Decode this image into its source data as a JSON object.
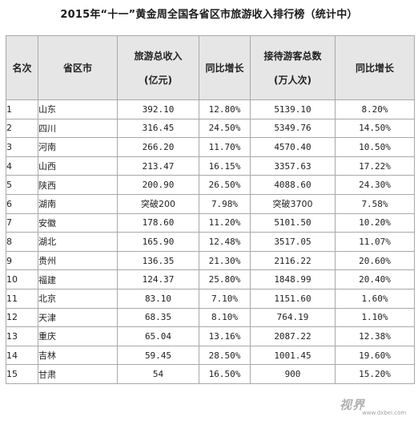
{
  "title": "2015年“十一”黄金周全国各省区市旅游收入排行榜（统计中）",
  "headers": {
    "rank": "名次",
    "province": "省区市",
    "income_l1": "旅游总收入",
    "income_l2": "(亿元)",
    "income_growth": "同比增长",
    "visitors_l1": "接待游客总数",
    "visitors_l2": "(万人次)",
    "visitors_growth": "同比增长"
  },
  "rows": [
    {
      "rank": "1",
      "province": "山东",
      "income": "392.10",
      "income_growth": "12.80%",
      "visitors": "5139.10",
      "visitors_growth": "8.20%"
    },
    {
      "rank": "2",
      "province": "四川",
      "income": "316.45",
      "income_growth": "24.50%",
      "visitors": "5349.76",
      "visitors_growth": "14.50%"
    },
    {
      "rank": "3",
      "province": "河南",
      "income": "266.20",
      "income_growth": "11.70%",
      "visitors": "4570.40",
      "visitors_growth": "10.50%"
    },
    {
      "rank": "4",
      "province": "山西",
      "income": "213.47",
      "income_growth": "16.15%",
      "visitors": "3357.63",
      "visitors_growth": "17.22%"
    },
    {
      "rank": "5",
      "province": "陕西",
      "income": "200.90",
      "income_growth": "26.50%",
      "visitors": "4088.60",
      "visitors_growth": "24.30%"
    },
    {
      "rank": "6",
      "province": "湖南",
      "income": "突破200",
      "income_growth": "7.98%",
      "visitors": "突破3700",
      "visitors_growth": "7.58%"
    },
    {
      "rank": "7",
      "province": "安徽",
      "income": "178.60",
      "income_growth": "11.20%",
      "visitors": "5101.50",
      "visitors_growth": "10.20%"
    },
    {
      "rank": "8",
      "province": "湖北",
      "income": "165.90",
      "income_growth": "12.48%",
      "visitors": "3517.05",
      "visitors_growth": "11.07%"
    },
    {
      "rank": "9",
      "province": "贵州",
      "income": "136.35",
      "income_growth": "21.30%",
      "visitors": "2116.22",
      "visitors_growth": "20.60%"
    },
    {
      "rank": "10",
      "province": "福建",
      "income": "124.37",
      "income_growth": "25.80%",
      "visitors": "1848.99",
      "visitors_growth": "20.40%"
    },
    {
      "rank": "11",
      "province": "北京",
      "income": "83.10",
      "income_growth": "7.10%",
      "visitors": "1151.60",
      "visitors_growth": "1.60%"
    },
    {
      "rank": "12",
      "province": "天津",
      "income": "68.35",
      "income_growth": "8.10%",
      "visitors": "764.19",
      "visitors_growth": "1.10%"
    },
    {
      "rank": "13",
      "province": "重庆",
      "income": "65.04",
      "income_growth": "13.16%",
      "visitors": "2087.22",
      "visitors_growth": "12.38%"
    },
    {
      "rank": "14",
      "province": "吉林",
      "income": "59.45",
      "income_growth": "28.50%",
      "visitors": "1001.45",
      "visitors_growth": "19.60%"
    },
    {
      "rank": "15",
      "province": "甘肃",
      "income": "54",
      "income_growth": "16.50%",
      "visitors": "900",
      "visitors_growth": "15.20%"
    }
  ],
  "watermark": {
    "mark": "视界",
    "url": "www.dxbei.com"
  },
  "colors": {
    "header_bg": "#e6e6e6",
    "border": "#a9a9a9"
  }
}
